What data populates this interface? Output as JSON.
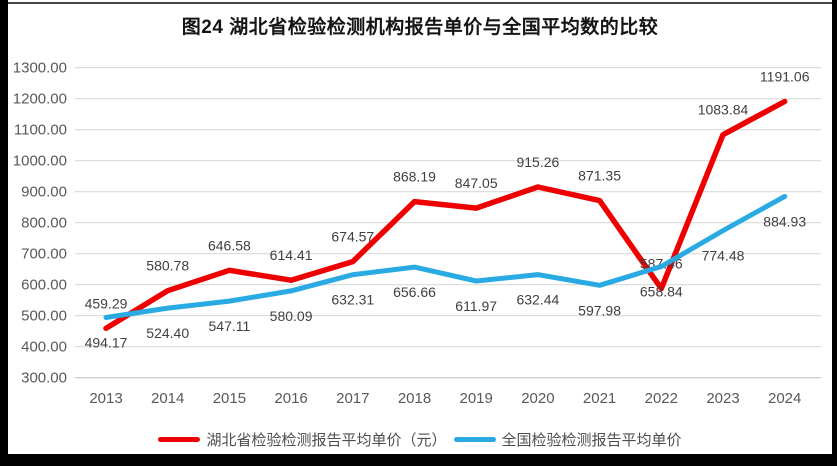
{
  "title": "图24 湖北省检验检测机构报告单价与全国平均数的比较",
  "chart_data": {
    "type": "line",
    "x": [
      "2013",
      "2014",
      "2015",
      "2016",
      "2017",
      "2018",
      "2019",
      "2020",
      "2021",
      "2022",
      "2023",
      "2024"
    ],
    "series": [
      {
        "name": "湖北省检验检测报告平均单价（元）",
        "color": "#EE0000",
        "label_position": "above",
        "values": [
          459.29,
          580.78,
          646.58,
          614.41,
          674.57,
          868.19,
          847.05,
          915.26,
          871.35,
          587.46,
          1083.84,
          1191.06
        ]
      },
      {
        "name": "全国检验检测报告平均单价",
        "color": "#29AAE2",
        "label_position": "below",
        "values": [
          494.17,
          524.4,
          547.11,
          580.09,
          632.31,
          656.66,
          611.97,
          632.44,
          597.98,
          658.84,
          774.48,
          884.93
        ]
      }
    ],
    "ylim": [
      300,
      1300
    ],
    "ytick_step": 100,
    "y_tick_labels": [
      "300.00",
      "400.00",
      "500.00",
      "600.00",
      "700.00",
      "800.00",
      "900.00",
      "1000.00",
      "1100.00",
      "1200.00",
      "1300.00"
    ],
    "grid": true,
    "legend_position": "bottom",
    "value_decimals": 2
  },
  "colors": {
    "grid": "#D9D9D9",
    "baseline": "#C6C6C6",
    "axis_text": "#595959",
    "data_label_text": "#404040",
    "page_bg": "#FFFFFF",
    "frame": "#000000"
  }
}
